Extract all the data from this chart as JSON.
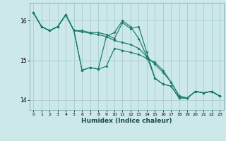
{
  "xlabel": "Humidex (Indice chaleur)",
  "background_color": "#cce8e8",
  "line_color": "#1a7a6a",
  "grid_color": "#aacccc",
  "xlim": [
    -0.5,
    23.5
  ],
  "ylim": [
    13.75,
    16.45
  ],
  "yticks": [
    14,
    15,
    16
  ],
  "xticks": [
    0,
    1,
    2,
    3,
    4,
    5,
    6,
    7,
    8,
    9,
    10,
    11,
    12,
    13,
    14,
    15,
    16,
    17,
    18,
    19,
    20,
    21,
    22,
    23
  ],
  "series": [
    {
      "x": [
        0,
        1,
        2,
        3,
        4,
        5,
        6,
        7,
        8,
        9,
        10,
        11,
        12,
        13,
        14,
        15,
        16,
        17,
        18,
        19,
        20,
        21,
        22,
        23
      ],
      "y": [
        16.2,
        15.85,
        15.75,
        15.85,
        16.15,
        15.75,
        15.75,
        15.7,
        15.7,
        15.65,
        15.55,
        15.95,
        15.8,
        15.85,
        15.2,
        14.55,
        14.4,
        14.35,
        14.05,
        14.05,
        14.22,
        14.18,
        14.22,
        14.1
      ]
    },
    {
      "x": [
        0,
        1,
        2,
        3,
        4,
        5,
        6,
        7,
        8,
        9,
        10,
        11,
        12,
        13,
        14,
        15,
        16,
        17,
        18,
        19,
        20,
        21,
        22,
        23
      ],
      "y": [
        16.2,
        15.85,
        15.75,
        15.85,
        16.15,
        15.75,
        15.72,
        15.68,
        15.65,
        15.6,
        15.5,
        15.45,
        15.4,
        15.3,
        15.1,
        14.9,
        14.7,
        14.45,
        14.1,
        14.05,
        14.22,
        14.18,
        14.22,
        14.1
      ]
    },
    {
      "x": [
        0,
        1,
        2,
        3,
        4,
        5,
        6,
        7,
        8,
        9,
        10,
        11,
        12,
        13,
        14,
        15,
        16,
        17,
        18,
        19,
        20,
        21,
        22,
        23
      ],
      "y": [
        16.2,
        15.85,
        15.75,
        15.85,
        16.15,
        15.75,
        14.75,
        14.82,
        14.78,
        14.85,
        15.3,
        15.25,
        15.2,
        15.15,
        15.05,
        14.95,
        14.75,
        14.45,
        14.1,
        14.05,
        14.22,
        14.18,
        14.22,
        14.1
      ]
    },
    {
      "x": [
        0,
        1,
        2,
        3,
        4,
        5,
        6,
        7,
        8,
        9,
        10,
        11,
        12,
        13,
        14,
        15,
        16,
        17,
        18,
        19,
        20,
        21,
        22,
        23
      ],
      "y": [
        16.2,
        15.85,
        15.75,
        15.85,
        16.15,
        15.75,
        14.75,
        14.82,
        14.78,
        15.6,
        15.7,
        16.0,
        15.85,
        15.55,
        15.1,
        14.55,
        14.4,
        14.35,
        14.05,
        14.05,
        14.22,
        14.18,
        14.22,
        14.1
      ]
    }
  ]
}
